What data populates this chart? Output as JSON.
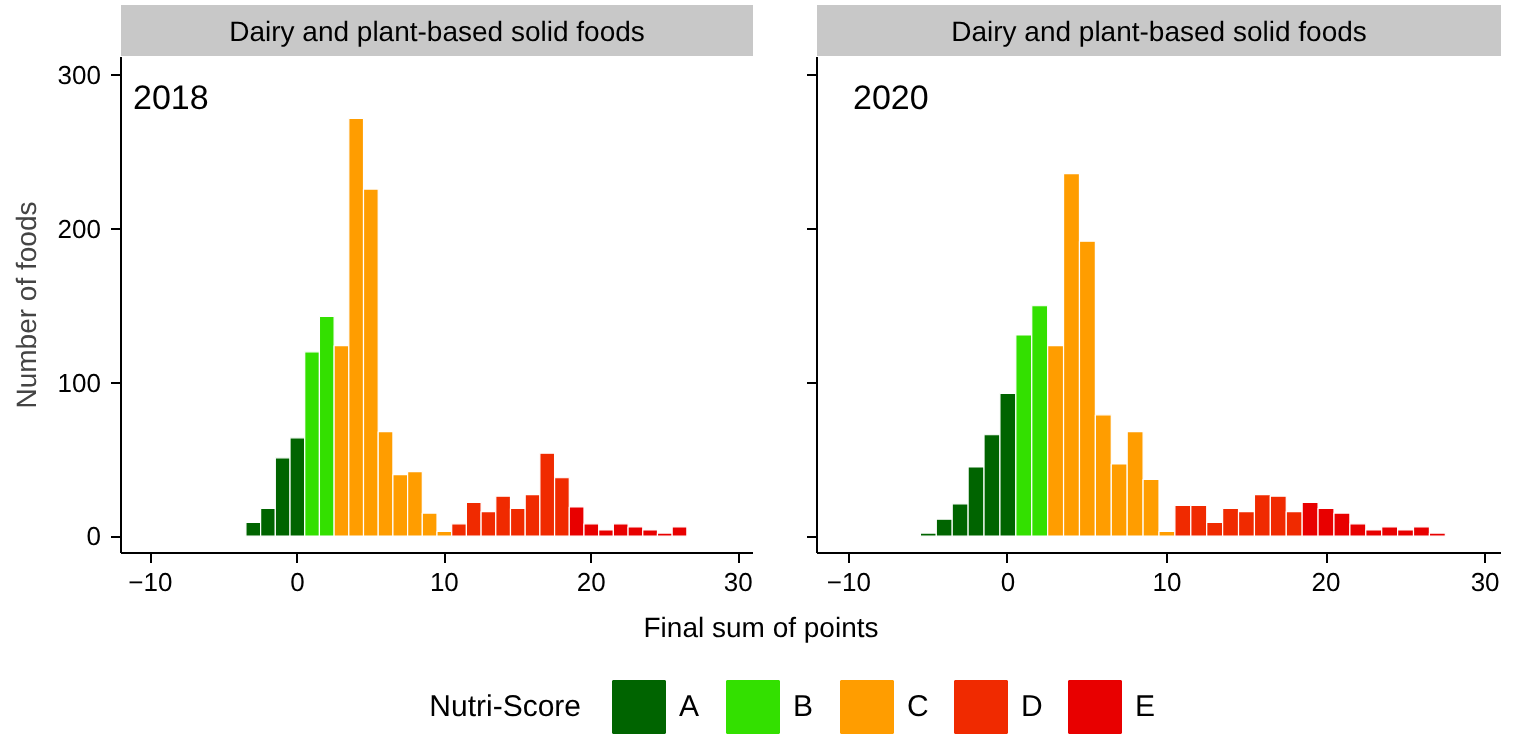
{
  "chart_data": [
    {
      "type": "bar",
      "title": "Dairy and plant-based solid foods",
      "annotations": [
        "2018"
      ],
      "xlabel": "Final sum of points",
      "ylabel": "Number of foods",
      "legend_title": "Nutri-Score",
      "legend": "bottom",
      "xlim": [
        -12,
        31
      ],
      "xticks": [
        -10,
        0,
        10,
        20,
        30
      ],
      "ylim": [
        -11,
        312
      ],
      "yticks": [
        0,
        100,
        200,
        300
      ],
      "grid": false,
      "series": [
        {
          "name": "A",
          "color": "#006400",
          "x": [
            -3,
            -2,
            -1,
            0
          ],
          "values": [
            9,
            18,
            51,
            64
          ]
        },
        {
          "name": "B",
          "color": "#33e000",
          "x": [
            1,
            2
          ],
          "values": [
            120,
            143
          ]
        },
        {
          "name": "C",
          "color": "#ff9d00",
          "x": [
            3,
            4,
            5,
            6,
            7,
            8,
            9,
            10
          ],
          "values": [
            124,
            272,
            226,
            68,
            40,
            42,
            15,
            3
          ]
        },
        {
          "name": "D",
          "color": "#f02a00",
          "x": [
            11,
            12,
            13,
            14,
            15,
            16,
            17,
            18
          ],
          "values": [
            8,
            22,
            16,
            26,
            18,
            27,
            54,
            38
          ]
        },
        {
          "name": "E",
          "color": "#e80000",
          "x": [
            19,
            20,
            21,
            22,
            23,
            24,
            25,
            26
          ],
          "values": [
            19,
            8,
            4,
            8,
            6,
            4,
            2,
            6
          ]
        }
      ]
    },
    {
      "type": "bar",
      "title": "Dairy and plant-based solid foods",
      "annotations": [
        "2020"
      ],
      "tick_labels": "x",
      "xlim": [
        -12,
        31
      ],
      "xticks": [
        -10,
        0,
        10,
        20,
        30
      ],
      "ylim": [
        -11,
        312
      ],
      "yticks": [
        0,
        100,
        200,
        300
      ],
      "grid": false,
      "series": [
        {
          "color": "#006400",
          "x": [
            -5,
            -4,
            -3,
            -2,
            -1,
            0
          ],
          "values": [
            2,
            11,
            21,
            45,
            66,
            93
          ]
        },
        {
          "color": "#33e000",
          "x": [
            1,
            2
          ],
          "values": [
            131,
            150
          ]
        },
        {
          "color": "#ff9d00",
          "x": [
            3,
            4,
            5,
            6,
            7,
            8,
            9,
            10
          ],
          "values": [
            124,
            236,
            192,
            79,
            47,
            68,
            37,
            3
          ]
        },
        {
          "color": "#f02a00",
          "x": [
            11,
            12,
            13,
            14,
            15,
            16,
            17,
            18
          ],
          "values": [
            20,
            20,
            9,
            18,
            16,
            27,
            26,
            16
          ]
        },
        {
          "color": "#e80000",
          "x": [
            19,
            20,
            21,
            22,
            23,
            24,
            25,
            26,
            27
          ],
          "values": [
            22,
            18,
            15,
            8,
            4,
            6,
            4,
            6,
            2
          ]
        }
      ]
    }
  ]
}
